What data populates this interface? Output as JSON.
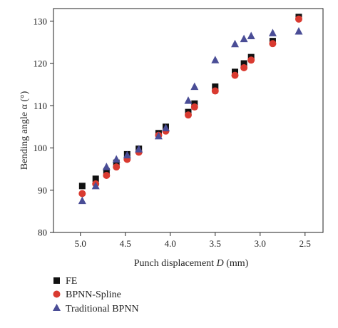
{
  "chart_data": {
    "type": "scatter",
    "title": "",
    "xlabel_prefix": "Punch displacement ",
    "xlabel_var": "D",
    "xlabel_suffix": " (mm)",
    "ylabel": "Bending angle α (°)",
    "xlim": [
      5.3,
      2.3
    ],
    "ylim": [
      80,
      133
    ],
    "x_reversed": true,
    "grid": false,
    "legend_position": "bottom-left",
    "x_ticks": [
      5.0,
      4.5,
      4.0,
      3.5,
      3.0,
      2.5
    ],
    "x_tick_labels": [
      "5.0",
      "4.5",
      "4.0",
      "3.5",
      "3.0",
      "2.5"
    ],
    "y_ticks": [
      80,
      90,
      100,
      110,
      120,
      130
    ],
    "y_tick_labels": [
      "80",
      "90",
      "100",
      "110",
      "120",
      "130"
    ],
    "series": [
      {
        "name": "FE",
        "marker": "square",
        "color": "#111111",
        "x": [
          4.98,
          4.83,
          4.71,
          4.6,
          4.48,
          4.35,
          4.13,
          4.05,
          3.8,
          3.73,
          3.5,
          3.28,
          3.18,
          3.1,
          2.86,
          2.57
        ],
        "y": [
          91.0,
          92.7,
          94.5,
          96.5,
          98.5,
          99.8,
          103.5,
          105.0,
          108.5,
          110.5,
          114.5,
          118.0,
          120.0,
          121.5,
          125.3,
          131.0
        ]
      },
      {
        "name": "BPNN-Spline",
        "marker": "circle",
        "color": "#d93a30",
        "x": [
          4.98,
          4.83,
          4.71,
          4.6,
          4.48,
          4.35,
          4.13,
          4.05,
          3.8,
          3.73,
          3.5,
          3.28,
          3.18,
          3.1,
          2.86,
          2.57
        ],
        "y": [
          89.2,
          91.5,
          93.5,
          95.5,
          97.3,
          99.0,
          103.0,
          104.0,
          107.8,
          109.7,
          113.5,
          117.2,
          119.0,
          120.8,
          124.7,
          130.5
        ]
      },
      {
        "name": "Traditional BPNN",
        "marker": "triangle",
        "color": "#4a4d96",
        "x": [
          4.98,
          4.83,
          4.71,
          4.6,
          4.48,
          4.35,
          4.13,
          4.05,
          3.8,
          3.73,
          3.5,
          3.28,
          3.18,
          3.1,
          2.86,
          2.57
        ],
        "y": [
          87.5,
          91.0,
          95.5,
          97.3,
          98.3,
          99.7,
          102.8,
          104.7,
          111.2,
          114.5,
          120.8,
          124.6,
          125.8,
          126.5,
          127.2,
          127.6
        ]
      }
    ]
  }
}
